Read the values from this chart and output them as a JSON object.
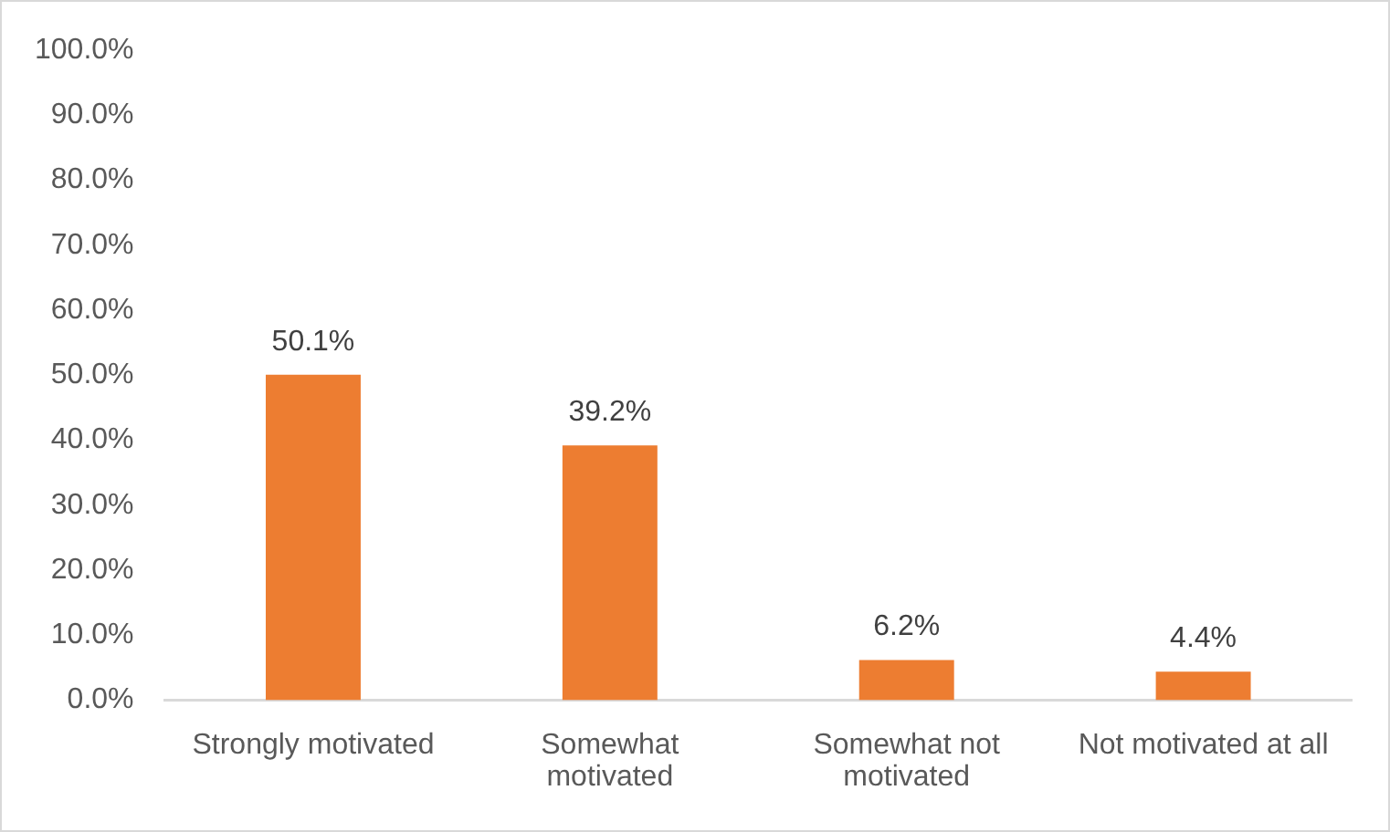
{
  "chart_data": {
    "type": "bar",
    "categories": [
      "Strongly motivated",
      "Somewhat motivated",
      "Somewhat not motivated",
      "Not motivated at all"
    ],
    "values": [
      50.1,
      39.2,
      6.2,
      4.4
    ],
    "value_labels": [
      "50.1%",
      "39.2%",
      "6.2%",
      "4.4%"
    ],
    "color": "#ed7d31",
    "ylim": [
      0,
      100
    ],
    "yticks": [
      {
        "value": 0,
        "label": "0.0%"
      },
      {
        "value": 10,
        "label": "10.0%"
      },
      {
        "value": 20,
        "label": "20.0%"
      },
      {
        "value": 30,
        "label": "30.0%"
      },
      {
        "value": 40,
        "label": "40.0%"
      },
      {
        "value": 50,
        "label": "50.0%"
      },
      {
        "value": 60,
        "label": "60.0%"
      },
      {
        "value": 70,
        "label": "70.0%"
      },
      {
        "value": 80,
        "label": "80.0%"
      },
      {
        "value": 90,
        "label": "90.0%"
      },
      {
        "value": 100,
        "label": "100.0%"
      }
    ]
  }
}
